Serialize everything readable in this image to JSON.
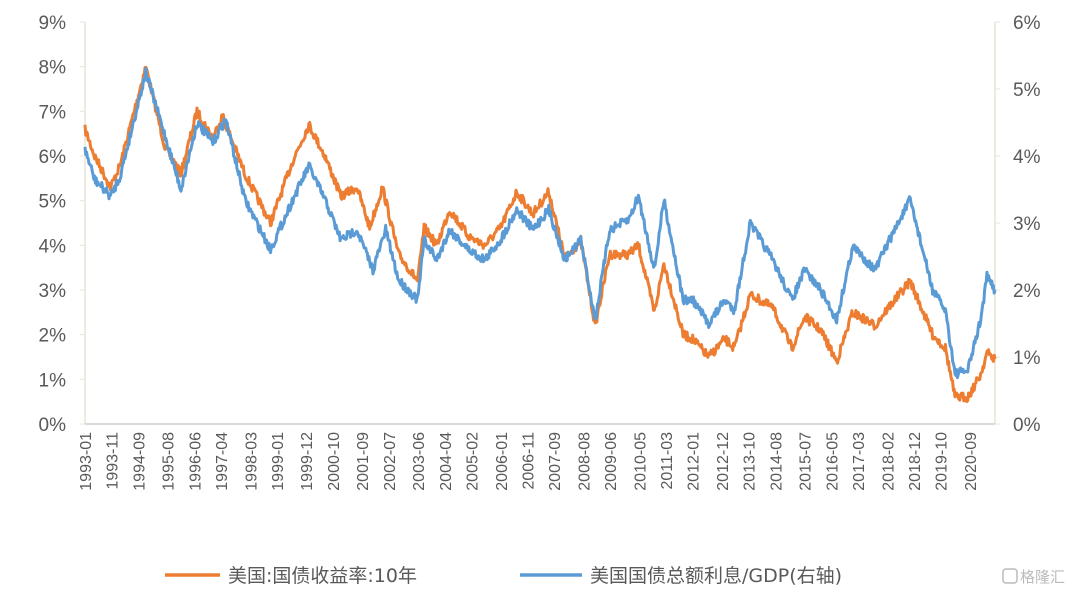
{
  "chart_data": {
    "type": "line",
    "title": "",
    "left_axis": {
      "ticks": [
        "0%",
        "1%",
        "2%",
        "3%",
        "4%",
        "5%",
        "6%",
        "7%",
        "8%",
        "9%"
      ],
      "ylim": [
        0,
        9
      ]
    },
    "right_axis": {
      "ticks": [
        "0%",
        "1%",
        "2%",
        "3%",
        "4%",
        "5%",
        "6%"
      ],
      "ylim": [
        0,
        6
      ]
    },
    "x_ticks": [
      "1993-01",
      "1993-11",
      "1994-09",
      "1995-08",
      "1996-06",
      "1997-04",
      "1998-03",
      "1999-01",
      "1999-12",
      "2000-10",
      "2001-09",
      "2002-07",
      "2003-06",
      "2004-04",
      "2005-02",
      "2006-01",
      "2006-11",
      "2007-09",
      "2008-08",
      "2009-06",
      "2010-05",
      "2011-03",
      "2012-01",
      "2012-12",
      "2013-10",
      "2014-08",
      "2015-07",
      "2016-05",
      "2017-03",
      "2018-02",
      "2018-12",
      "2019-10",
      "2020-09"
    ],
    "xlim": [
      1993.0,
      2021.45
    ],
    "grid": false,
    "legend_position": "bottom",
    "series": [
      {
        "name": "美国:国债收益率:10年",
        "axis": "left",
        "color": "#ED7D31",
        "x": [
          1993.0,
          1993.3,
          1993.8,
          1994.1,
          1994.9,
          1995.5,
          1996.0,
          1996.5,
          1997.0,
          1997.3,
          1998.0,
          1998.8,
          1999.5,
          2000.0,
          2000.5,
          2001.0,
          2001.5,
          2001.9,
          2002.3,
          2002.8,
          2003.4,
          2003.6,
          2004.0,
          2004.4,
          2005.0,
          2005.5,
          2006.0,
          2006.5,
          2007.0,
          2007.5,
          2008.0,
          2008.5,
          2008.95,
          2009.4,
          2010.0,
          2010.3,
          2010.8,
          2011.1,
          2011.7,
          2012.0,
          2012.5,
          2013.0,
          2013.3,
          2013.8,
          2014.5,
          2015.1,
          2015.5,
          2016.0,
          2016.5,
          2017.0,
          2017.7,
          2018.0,
          2018.8,
          2019.5,
          2019.9,
          2020.2,
          2020.6,
          2021.0,
          2021.2,
          2021.45
        ],
        "y": [
          6.6,
          6.0,
          5.3,
          5.8,
          8.0,
          6.2,
          5.6,
          7.0,
          6.4,
          6.9,
          5.6,
          4.5,
          5.9,
          6.7,
          6.0,
          5.1,
          5.3,
          4.4,
          5.3,
          3.8,
          3.2,
          4.4,
          4.0,
          4.8,
          4.2,
          4.0,
          4.4,
          5.2,
          4.7,
          5.2,
          3.7,
          4.1,
          2.2,
          3.8,
          3.8,
          4.0,
          2.5,
          3.6,
          2.0,
          1.9,
          1.5,
          1.9,
          1.7,
          2.9,
          2.6,
          1.7,
          2.4,
          2.1,
          1.4,
          2.5,
          2.2,
          2.5,
          3.2,
          2.0,
          1.7,
          0.6,
          0.6,
          1.1,
          1.6,
          1.45
        ]
      },
      {
        "name": "美国国债总额利息/GDP(右轴)",
        "axis": "right",
        "color": "#5B9BD5",
        "x": [
          1993.0,
          1993.3,
          1993.8,
          1994.1,
          1994.9,
          1995.5,
          1996.0,
          1996.5,
          1997.0,
          1997.4,
          1998.0,
          1998.8,
          1999.5,
          2000.0,
          2000.5,
          2001.0,
          2001.5,
          2002.0,
          2002.4,
          2002.8,
          2003.4,
          2003.6,
          2004.0,
          2004.4,
          2005.0,
          2005.5,
          2006.0,
          2006.5,
          2007.0,
          2007.5,
          2008.0,
          2008.5,
          2008.95,
          2009.4,
          2010.0,
          2010.3,
          2010.8,
          2011.1,
          2011.7,
          2012.0,
          2012.5,
          2013.0,
          2013.3,
          2013.8,
          2014.5,
          2015.1,
          2015.5,
          2016.0,
          2016.5,
          2017.0,
          2017.7,
          2018.0,
          2018.8,
          2019.5,
          2019.9,
          2020.2,
          2020.6,
          2021.0,
          2021.2,
          2021.45
        ],
        "y": [
          4.1,
          3.65,
          3.4,
          3.7,
          5.25,
          4.3,
          3.5,
          4.5,
          4.2,
          4.55,
          3.35,
          2.6,
          3.35,
          3.85,
          3.35,
          2.75,
          2.9,
          2.3,
          2.9,
          2.15,
          1.85,
          2.75,
          2.45,
          2.9,
          2.6,
          2.45,
          2.75,
          3.2,
          2.9,
          3.2,
          2.45,
          2.75,
          1.55,
          2.9,
          3.05,
          3.4,
          2.3,
          3.35,
          1.85,
          1.85,
          1.5,
          1.85,
          1.7,
          3.0,
          2.45,
          1.85,
          2.3,
          2.0,
          1.55,
          2.65,
          2.3,
          2.6,
          3.35,
          2.0,
          1.7,
          0.75,
          0.8,
          1.55,
          2.2,
          2.0
        ]
      }
    ]
  },
  "watermark": "格隆汇"
}
